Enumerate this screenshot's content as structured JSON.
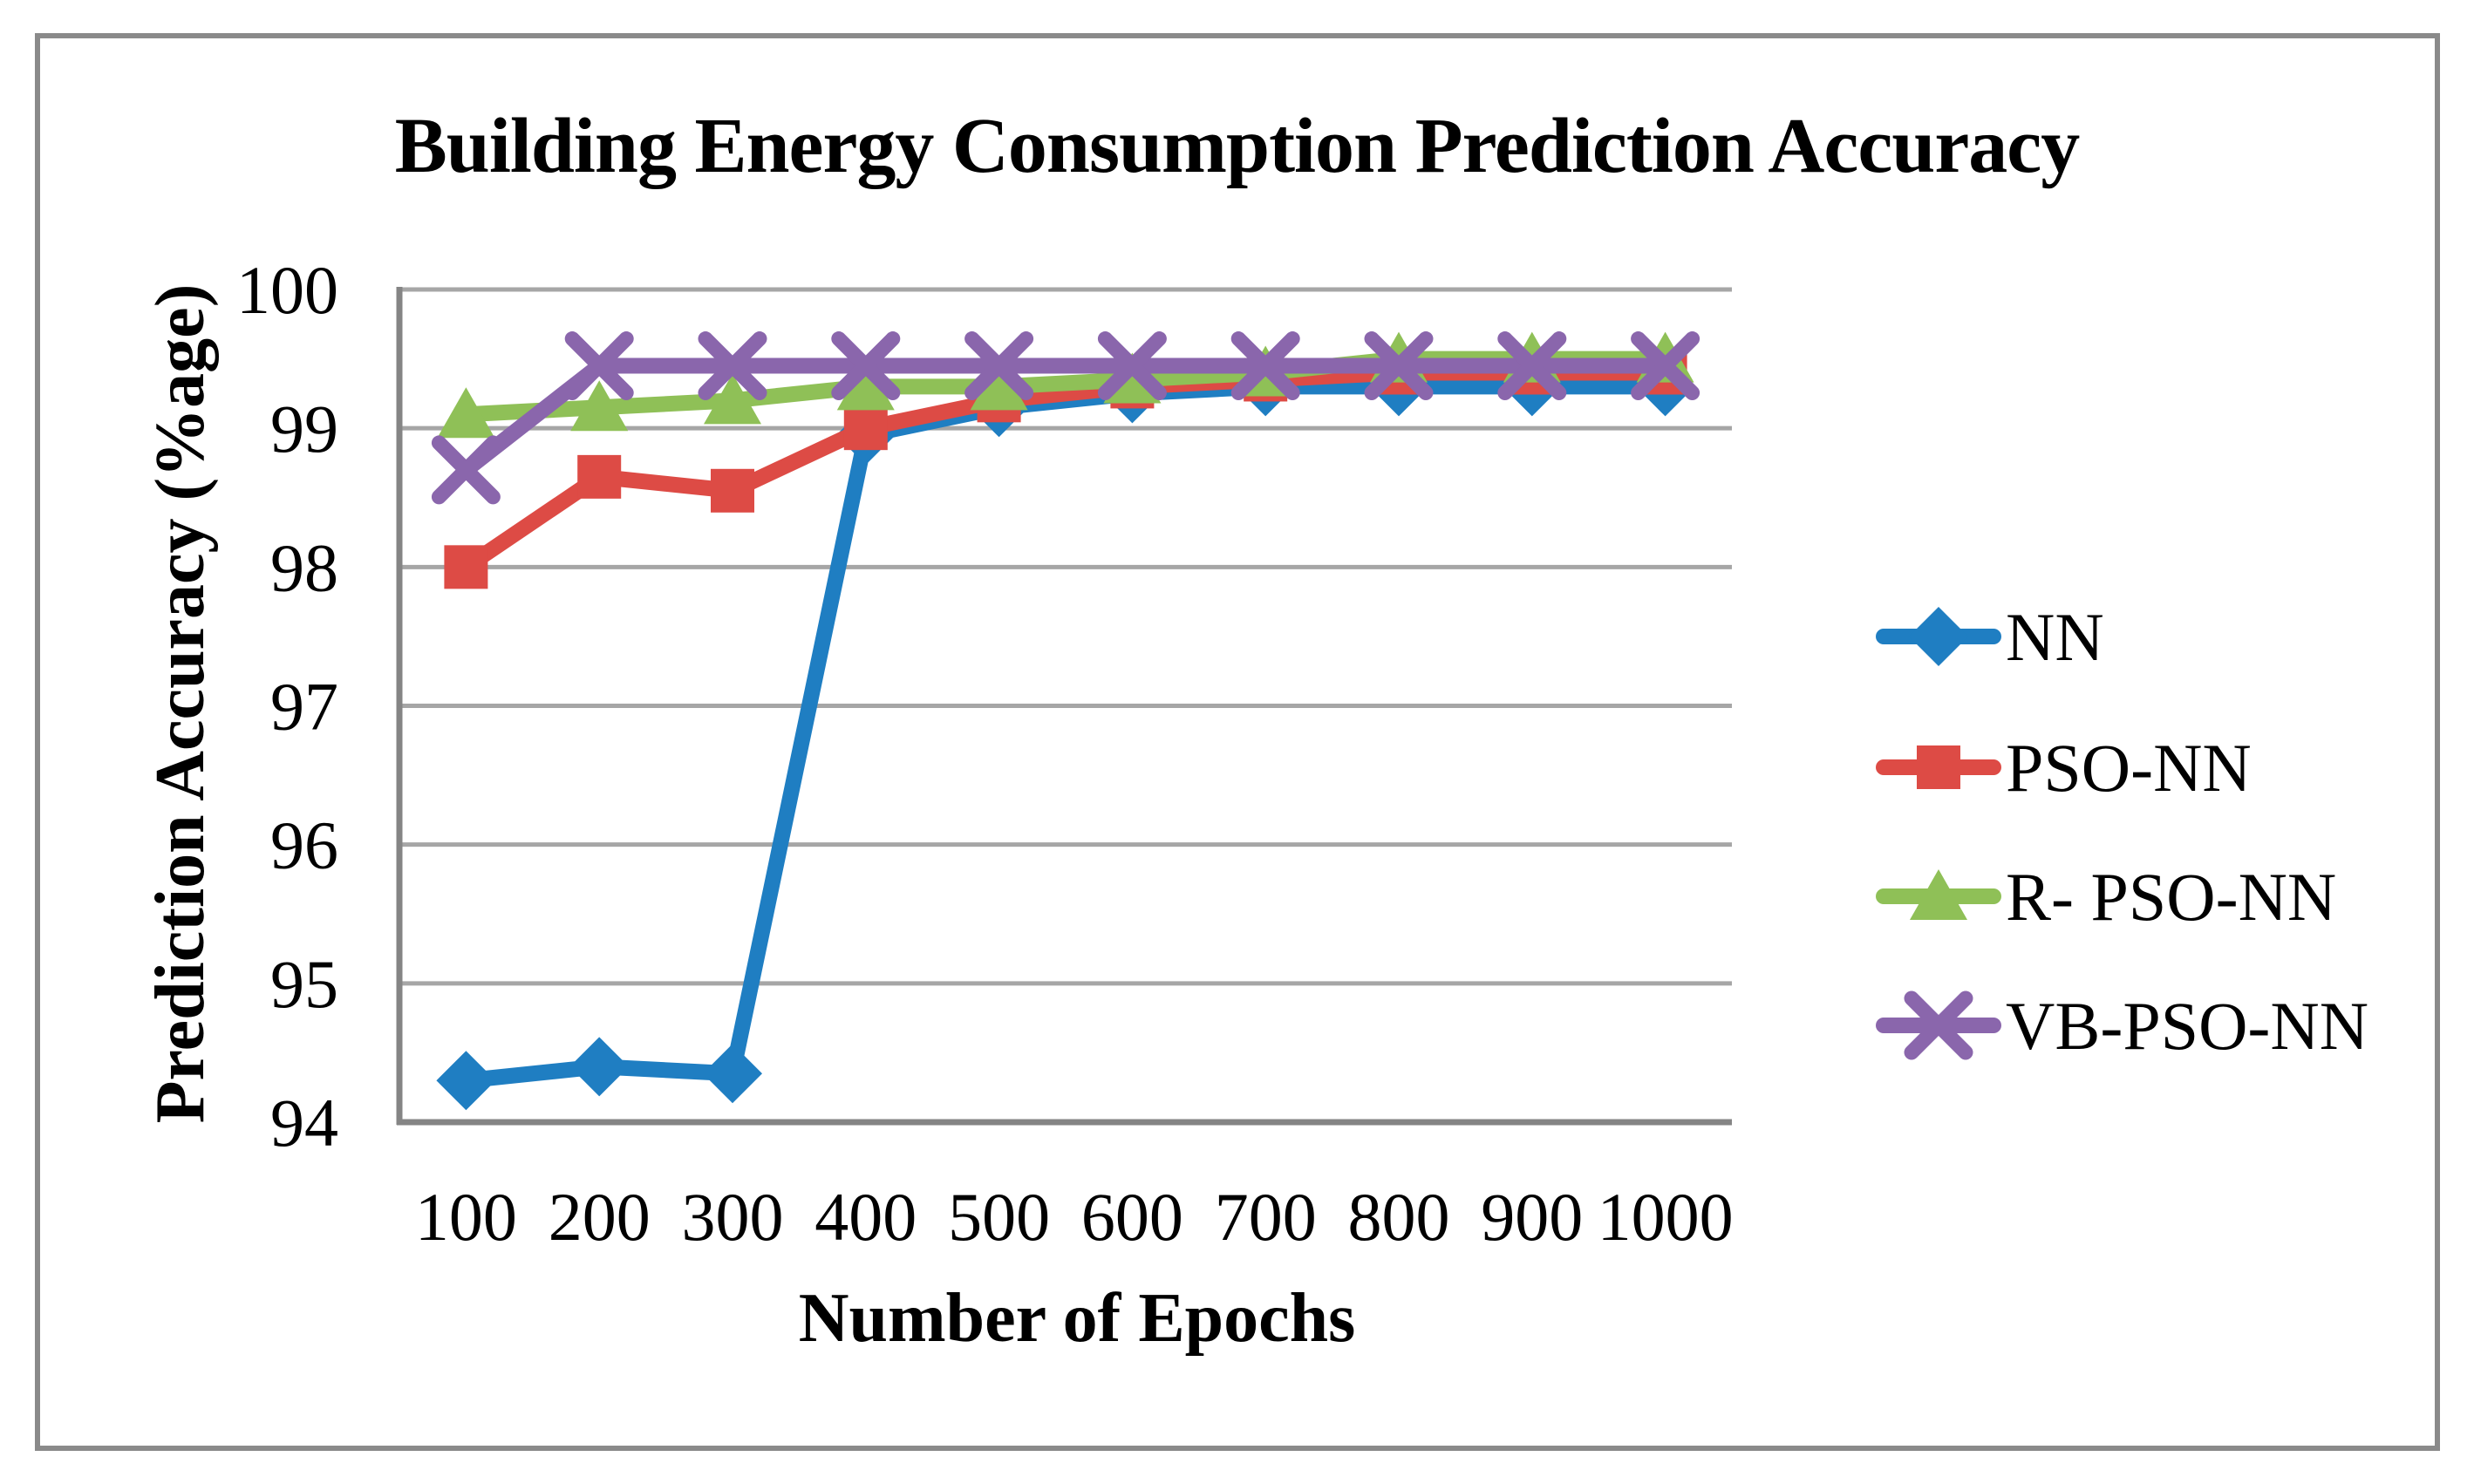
{
  "chart_data": {
    "type": "line",
    "title": "Building Energy Consumption Prediction Accuracy",
    "xlabel": "Number of Epochs",
    "ylabel": "Prediction Accuracy (%age)",
    "categories": [
      "100",
      "200",
      "300",
      "400",
      "500",
      "600",
      "700",
      "800",
      "900",
      "1000"
    ],
    "yticks": [
      94,
      95,
      96,
      97,
      98,
      99,
      100
    ],
    "ylim": [
      94,
      100
    ],
    "grid": true,
    "legend_position": "right",
    "series": [
      {
        "name": "NN",
        "marker": "diamond",
        "color": "#1F7EC2",
        "values": [
          94.3,
          94.4,
          94.35,
          98.95,
          99.15,
          99.25,
          99.3,
          99.3,
          99.3,
          99.3
        ]
      },
      {
        "name": "PSO-NN",
        "marker": "square",
        "color": "#DD4B45",
        "values": [
          98.0,
          98.65,
          98.55,
          99.0,
          99.2,
          99.3,
          99.35,
          99.4,
          99.4,
          99.4
        ]
      },
      {
        "name": "R- PSO-NN",
        "marker": "triangle",
        "color": "#8FC057",
        "values": [
          99.1,
          99.15,
          99.2,
          99.3,
          99.3,
          99.35,
          99.4,
          99.5,
          99.5,
          99.5
        ]
      },
      {
        "name": "VB-PSO-NN",
        "marker": "x",
        "color": "#8A66AC",
        "values": [
          98.7,
          99.45,
          99.45,
          99.45,
          99.45,
          99.45,
          99.45,
          99.45,
          99.45,
          99.45
        ]
      }
    ],
    "grid_color": "#A6A6A6",
    "axis_color": "#858585",
    "frame_color": "#8A8A8A",
    "text_color": "#000000"
  }
}
